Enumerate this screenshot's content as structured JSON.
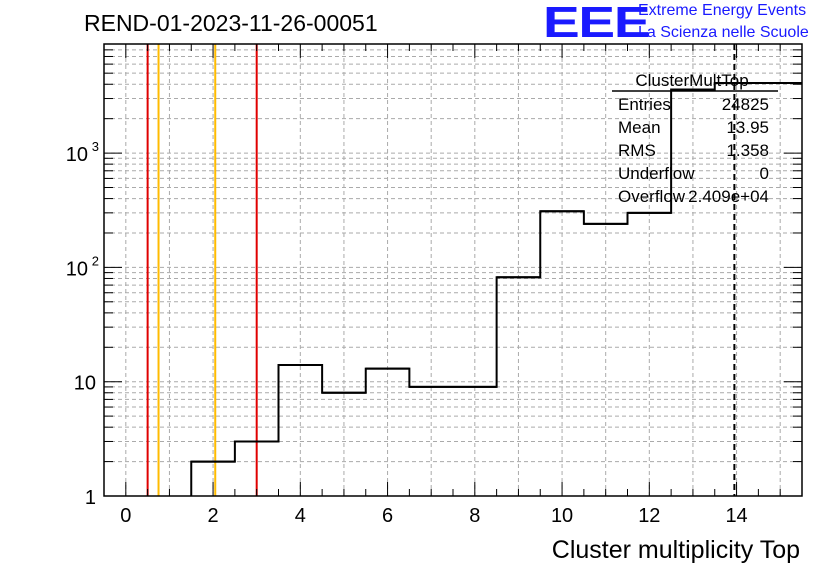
{
  "header": {
    "title": "REND-01-2023-11-26-00051"
  },
  "logo": {
    "mark": "EEE",
    "line1": "Extreme Energy Events",
    "line2": "La Scienza nelle Scuole",
    "color": "#1a1aff"
  },
  "stats_box": {
    "name": "ClusterMultTop",
    "rows": [
      {
        "label": "Entries",
        "value": "24825"
      },
      {
        "label": "Mean",
        "value": "13.95"
      },
      {
        "label": "RMS",
        "value": "1.358"
      },
      {
        "label": "Underflow",
        "value": "0"
      },
      {
        "label": "Overflow",
        "value": "2.409e+04"
      }
    ]
  },
  "chart_data": {
    "type": "histogram",
    "xlabel": "Cluster multiplicity Top",
    "ylabel": "",
    "xlim": [
      -0.5,
      15.5
    ],
    "ylim": [
      1,
      9000
    ],
    "y_scale": "log",
    "grid": true,
    "x_ticks": [
      0,
      2,
      4,
      6,
      8,
      10,
      12,
      14
    ],
    "y_ticks": [
      {
        "value": 1,
        "label": "1"
      },
      {
        "value": 10,
        "label": "10"
      },
      {
        "value": 100,
        "label": "10",
        "exp": "2"
      },
      {
        "value": 1000,
        "label": "10",
        "exp": "3"
      }
    ],
    "bins": [
      {
        "lo": 1.5,
        "hi": 2.5,
        "count": 2
      },
      {
        "lo": 2.5,
        "hi": 3.5,
        "count": 3
      },
      {
        "lo": 3.5,
        "hi": 4.5,
        "count": 14
      },
      {
        "lo": 4.5,
        "hi": 5.5,
        "count": 8
      },
      {
        "lo": 5.5,
        "hi": 6.5,
        "count": 13
      },
      {
        "lo": 6.5,
        "hi": 7.5,
        "count": 9
      },
      {
        "lo": 7.5,
        "hi": 8.5,
        "count": 9
      },
      {
        "lo": 8.5,
        "hi": 9.5,
        "count": 82
      },
      {
        "lo": 9.5,
        "hi": 10.5,
        "count": 310
      },
      {
        "lo": 10.5,
        "hi": 11.5,
        "count": 240
      },
      {
        "lo": 11.5,
        "hi": 12.5,
        "count": 300
      },
      {
        "lo": 12.5,
        "hi": 13.5,
        "count": 3600
      },
      {
        "lo": 13.5,
        "hi": 15.5,
        "count": 4100
      }
    ],
    "vertical_lines": [
      {
        "x": 0.5,
        "color": "#e00000",
        "style": "solid"
      },
      {
        "x": 0.75,
        "color": "#ffbb00",
        "style": "solid"
      },
      {
        "x": 2.05,
        "color": "#ffbb00",
        "style": "solid"
      },
      {
        "x": 3.0,
        "color": "#e00000",
        "style": "solid"
      },
      {
        "x": 13.95,
        "color": "#000000",
        "style": "dashed"
      }
    ]
  }
}
